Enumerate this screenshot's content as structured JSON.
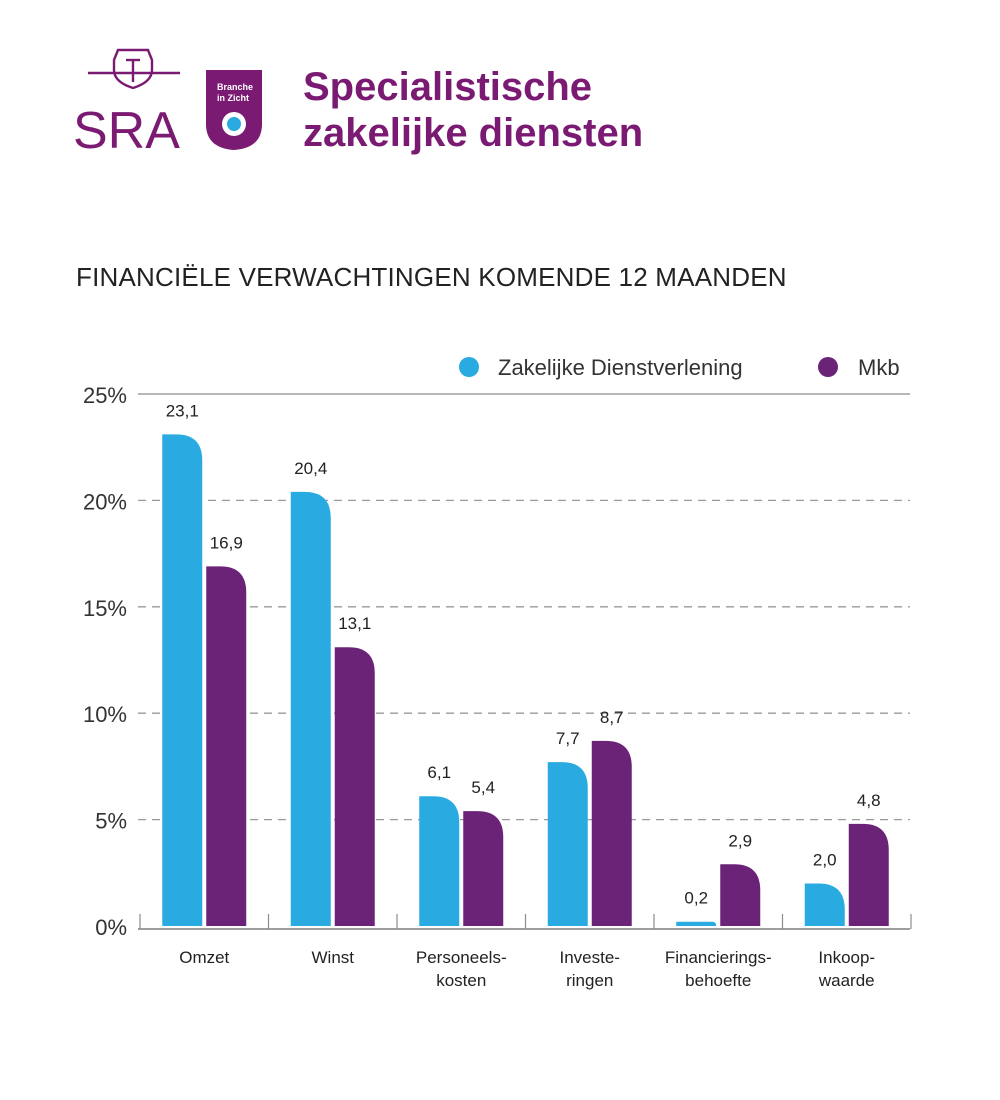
{
  "logo": {
    "name": "SRA",
    "badge_line1": "Branche",
    "badge_line2": "in Zicht",
    "brand_color": "#7b1a72",
    "accent_color": "#29abe2"
  },
  "page_title_line1": "Specialistische",
  "page_title_line2": "zakelijke diensten",
  "chart_data": {
    "type": "bar",
    "title": "FINANCIËLE VERWACHTINGEN KOMENDE 12 MAANDEN",
    "xlabel": "",
    "ylabel": "",
    "ylim": [
      0,
      25
    ],
    "yticks": [
      0,
      5,
      10,
      15,
      20,
      25
    ],
    "ytick_labels": [
      "0%",
      "5%",
      "10%",
      "15%",
      "20%",
      "25%"
    ],
    "grid": true,
    "legend_position": "top-right",
    "categories": [
      [
        "Omzet"
      ],
      [
        "Winst"
      ],
      [
        "Personeels-",
        "kosten"
      ],
      [
        "Investe-",
        "ringen"
      ],
      [
        "Financierings-",
        "behoefte"
      ],
      [
        "Inkoop-",
        "waarde"
      ]
    ],
    "series": [
      {
        "name": "Zakelijke Dienstverlening",
        "color": "#29abe2",
        "values": [
          23.1,
          20.4,
          6.1,
          7.7,
          0.2,
          2.0
        ],
        "labels": [
          "23,1",
          "20,4",
          "6,1",
          "7,7",
          "0,2",
          "2,0"
        ]
      },
      {
        "name": "Mkb",
        "color": "#6b2377",
        "values": [
          16.9,
          13.1,
          5.4,
          8.7,
          2.9,
          4.8
        ],
        "labels": [
          "16,9",
          "13,1",
          "5,4",
          "8,7",
          "2,9",
          "4,8"
        ]
      }
    ]
  }
}
